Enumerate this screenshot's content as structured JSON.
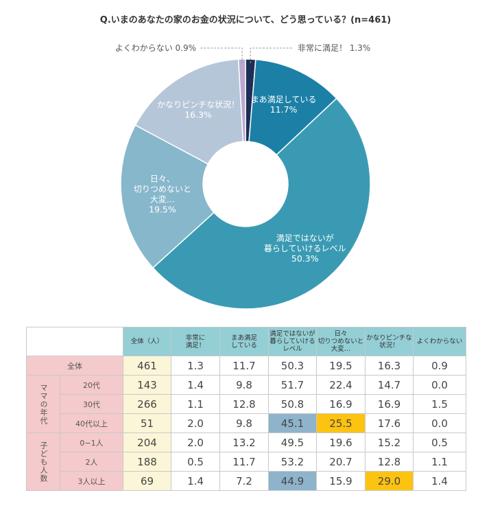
{
  "title": "Q.いまのあなたの家のお金の状況について、どう思っている？(n=461)",
  "chart_data": {
    "type": "pie",
    "donut": true,
    "categories": [
      "非常に満足！",
      "まあ満足している",
      "満足ではないが暮らしていけるレベル",
      "日々、切りつめないと大変…",
      "かなりピンチな状況！",
      "よくわからない"
    ],
    "values": [
      1.3,
      11.7,
      50.3,
      19.5,
      16.3,
      0.9
    ],
    "value_labels": [
      "1.3%",
      "11.7%",
      "50.3%",
      "19.5%",
      "16.3%",
      "0.9%"
    ],
    "slice_label_lines": [
      [
        "非常に満足！"
      ],
      [
        "まあ満足している"
      ],
      [
        "満足ではないが",
        "暮らしていけるレベル"
      ],
      [
        "日々、",
        "切りつめないと",
        "大変…"
      ],
      [
        "かなりピンチな状況！"
      ],
      [
        "よくわからない"
      ]
    ],
    "colors": [
      "#1d2f56",
      "#1c80a6",
      "#3a9ab3",
      "#87b7cb",
      "#b6c6d9",
      "#b9a8cf"
    ],
    "outside_labels": {
      "left": "よくわからない",
      "left_value": "0.9%",
      "right": "非常に満足！",
      "right_value": "1.3%"
    }
  },
  "table": {
    "headers": [
      "全体（人）",
      "非常に\n満足！",
      "まあ満足\nしている",
      "満足ではないが\n暮らしていける\nレベル",
      "日々\n切りつめないと\n大変…",
      "かなりピンチな\n状況！",
      "よくわからない"
    ],
    "total_row": {
      "label": "全体",
      "values": [
        "461",
        "1.3",
        "11.7",
        "50.3",
        "19.5",
        "16.3",
        "0.9"
      ]
    },
    "groups": [
      {
        "label": "ママの年代",
        "rows": [
          {
            "label": "20代",
            "values": [
              "143",
              "1.4",
              "9.8",
              "51.7",
              "22.4",
              "14.7",
              "0.0"
            ]
          },
          {
            "label": "30代",
            "values": [
              "266",
              "1.1",
              "12.8",
              "50.8",
              "16.9",
              "16.9",
              "1.5"
            ]
          },
          {
            "label": "40代以上",
            "values": [
              "51",
              "2.0",
              "9.8",
              "45.1",
              "25.5",
              "17.6",
              "0.0"
            ]
          }
        ]
      },
      {
        "label": "子ども人数",
        "rows": [
          {
            "label": "0−1人",
            "values": [
              "204",
              "2.0",
              "13.2",
              "49.5",
              "19.6",
              "15.2",
              "0.5"
            ]
          },
          {
            "label": "2人",
            "values": [
              "188",
              "0.5",
              "11.7",
              "53.2",
              "20.7",
              "12.8",
              "1.1"
            ]
          },
          {
            "label": "3人以上",
            "values": [
              "69",
              "1.4",
              "7.2",
              "44.9",
              "15.9",
              "29.0",
              "1.4"
            ]
          }
        ]
      }
    ],
    "highlight_colors": {
      "blue": "#8eb3cb",
      "yellow": "#fdc311"
    }
  }
}
